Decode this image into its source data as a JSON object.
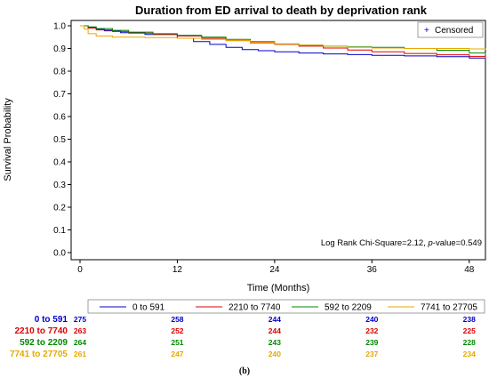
{
  "chart_data": {
    "type": "line",
    "subtype": "kaplan-meier",
    "title": "Duration from ED arrival to death by deprivation rank",
    "xlabel": "Time (Months)",
    "ylabel": "Survival Probability",
    "xlim": [
      0,
      50
    ],
    "ylim": [
      0,
      1
    ],
    "xticks": [
      "0",
      "12",
      "24",
      "36",
      "48"
    ],
    "xtick_values": [
      0,
      12,
      24,
      36,
      48
    ],
    "yticks": [
      "0.0",
      "0.1",
      "0.2",
      "0.3",
      "0.4",
      "0.5",
      "0.6",
      "0.7",
      "0.8",
      "0.9",
      "1.0"
    ],
    "ytick_values": [
      0,
      0.1,
      0.2,
      0.3,
      0.4,
      0.5,
      0.6,
      0.7,
      0.8,
      0.9,
      1.0
    ],
    "grid": false,
    "annotation": {
      "prefix": "Log Rank Chi-Square=2.12, ",
      "p_label": "p",
      "suffix": "-value=0.549"
    },
    "censored_legend": {
      "symbol": "+",
      "label": "Censored",
      "placement": "top-right"
    },
    "legend_placement": "bottom",
    "series": [
      {
        "name": "0 to 591",
        "color": "#0000cc",
        "x": [
          0,
          1,
          2,
          3,
          5,
          8,
          12,
          14,
          16,
          18,
          20,
          22,
          24,
          27,
          30,
          33,
          36,
          40,
          44,
          48,
          50
        ],
        "y": [
          1.0,
          0.993,
          0.985,
          0.978,
          0.97,
          0.962,
          0.945,
          0.93,
          0.918,
          0.905,
          0.895,
          0.89,
          0.885,
          0.88,
          0.876,
          0.873,
          0.87,
          0.867,
          0.864,
          0.858,
          0.855
        ]
      },
      {
        "name": "2210 to 7740",
        "color": "#dd0000",
        "x": [
          0,
          1,
          2,
          4,
          6,
          9,
          12,
          15,
          18,
          21,
          24,
          27,
          30,
          33,
          36,
          40,
          44,
          48,
          50
        ],
        "y": [
          1.0,
          0.99,
          0.982,
          0.975,
          0.968,
          0.962,
          0.955,
          0.945,
          0.935,
          0.925,
          0.918,
          0.91,
          0.902,
          0.893,
          0.885,
          0.878,
          0.872,
          0.865,
          0.855
        ]
      },
      {
        "name": "592 to 2209",
        "color": "#008800",
        "x": [
          0,
          1,
          2,
          4,
          6,
          9,
          12,
          15,
          18,
          21,
          24,
          27,
          30,
          33,
          36,
          40,
          44,
          48,
          50
        ],
        "y": [
          1.0,
          0.995,
          0.988,
          0.98,
          0.972,
          0.965,
          0.958,
          0.95,
          0.94,
          0.93,
          0.92,
          0.915,
          0.91,
          0.907,
          0.905,
          0.9,
          0.892,
          0.88,
          0.87
        ]
      },
      {
        "name": "7741 to 27705",
        "color": "#e6a800",
        "x": [
          0,
          0.5,
          1,
          2,
          4,
          8,
          12,
          15,
          18,
          21,
          24,
          27,
          30,
          33,
          36,
          40,
          44,
          48,
          50
        ],
        "y": [
          1.0,
          0.985,
          0.965,
          0.955,
          0.95,
          0.948,
          0.945,
          0.94,
          0.935,
          0.928,
          0.92,
          0.915,
          0.91,
          0.905,
          0.902,
          0.9,
          0.9,
          0.898,
          0.895
        ]
      }
    ],
    "risk_table": {
      "times": [
        0,
        12,
        24,
        36,
        48
      ],
      "rows": [
        {
          "group": "0 to 591",
          "color": "#0000cc",
          "values": [
            "275",
            "258",
            "244",
            "240",
            "238"
          ]
        },
        {
          "group": "2210 to 7740",
          "color": "#dd0000",
          "values": [
            "263",
            "252",
            "244",
            "232",
            "225"
          ]
        },
        {
          "group": "592 to 2209",
          "color": "#008800",
          "values": [
            "264",
            "251",
            "243",
            "239",
            "228"
          ]
        },
        {
          "group": "7741 to 27705",
          "color": "#e6a800",
          "values": [
            "261",
            "247",
            "240",
            "237",
            "234"
          ]
        }
      ]
    }
  },
  "caption": "(b)"
}
